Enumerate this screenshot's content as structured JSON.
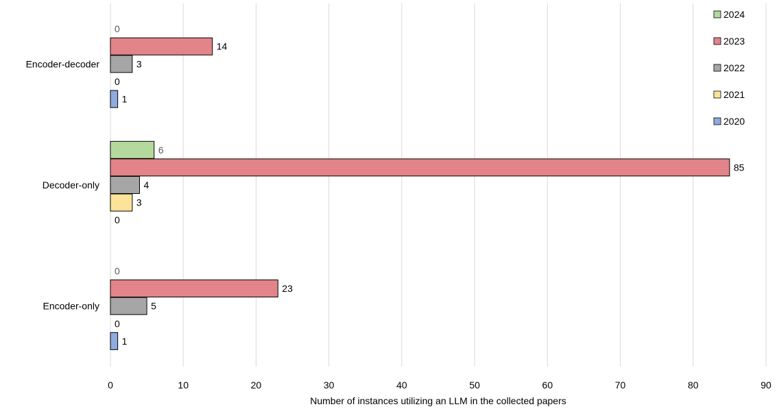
{
  "chart_data": {
    "type": "bar",
    "orientation": "horizontal",
    "categories": [
      "Encoder-decoder",
      "Decoder-only",
      "Encoder-only"
    ],
    "series": [
      {
        "name": "2024",
        "color": "#b5d99c",
        "values": [
          0,
          6,
          0
        ]
      },
      {
        "name": "2023",
        "color": "#e2848a",
        "values": [
          14,
          85,
          23
        ]
      },
      {
        "name": "2022",
        "color": "#a6a6a6",
        "values": [
          3,
          4,
          5
        ]
      },
      {
        "name": "2021",
        "color": "#fde39a",
        "values": [
          0,
          3,
          0
        ]
      },
      {
        "name": "2020",
        "color": "#8fabdd",
        "values": [
          1,
          0,
          1
        ]
      }
    ],
    "xlabel": "Number of instances utilizing an LLM in the collected papers",
    "ylabel": "",
    "xlim": [
      0,
      90
    ],
    "xticks": [
      "0",
      "10",
      "20",
      "30",
      "40",
      "50",
      "60",
      "70",
      "80",
      "90"
    ],
    "grid": "vertical",
    "legend": "top-right"
  }
}
